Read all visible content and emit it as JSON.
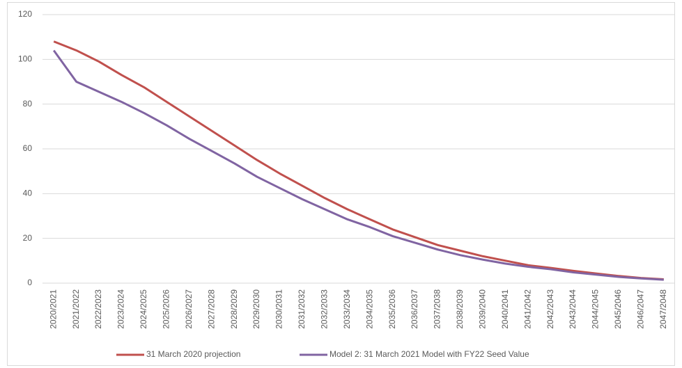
{
  "chart_data": {
    "type": "line",
    "categories": [
      "2020/2021",
      "2021/2022",
      "2022/2023",
      "2023/2024",
      "2024/2025",
      "2025/2026",
      "2026/2027",
      "2027/2028",
      "2028/2029",
      "2029/2030",
      "2030/2031",
      "2031/2032",
      "2032/2033",
      "2033/2034",
      "2034/2035",
      "2035/2036",
      "2036/2037",
      "2037/2038",
      "2038/2039",
      "2039/2040",
      "2040/2041",
      "2041/2042",
      "2042/2043",
      "2043/2044",
      "2044/2045",
      "2045/2046",
      "2046/2047",
      "2047/2048"
    ],
    "series": [
      {
        "name": "31 March 2020 projection",
        "color": "#c0504d",
        "values": [
          108,
          104,
          99,
          93,
          87.5,
          81,
          74.5,
          68,
          61.5,
          55,
          49,
          43.5,
          38,
          33,
          28.5,
          24,
          20.5,
          17,
          14.5,
          12,
          10,
          8,
          6.8,
          5.5,
          4.3,
          3.2,
          2.3,
          1.7
        ]
      },
      {
        "name": "Model 2: 31 March 2021 Model with FY22 Seed Value",
        "color": "#8064a2",
        "values": [
          104,
          90,
          85.5,
          81,
          76,
          70.5,
          64.5,
          59,
          53.5,
          47.5,
          42.5,
          37.5,
          33,
          28.5,
          25,
          21,
          18,
          15,
          12.5,
          10.5,
          8.7,
          7.3,
          6.2,
          4.8,
          3.8,
          2.8,
          2.1,
          1.5
        ]
      }
    ],
    "ylim": [
      0,
      120
    ],
    "yticks": [
      0,
      20,
      40,
      60,
      80,
      100,
      120
    ],
    "grid": true,
    "legend": "bottom"
  }
}
